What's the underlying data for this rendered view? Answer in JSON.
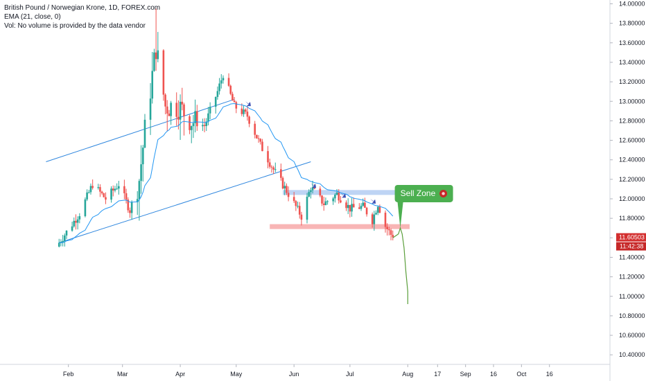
{
  "legend": {
    "title": "British Pound / Norwegian Krone, 1D, FOREX.com",
    "indicator": "EMA (21, close, 0)",
    "volume_note": "Vol: No volume is provided by the data vendor"
  },
  "colors": {
    "up": "#26a69a",
    "down": "#ef5350",
    "ema": "#2196f3",
    "channel": "#2e86de",
    "blue_zone": "#b3cdf2",
    "red_zone": "#f7a8a8",
    "projection": "#5a9e3a",
    "sell_zone_bg": "#4caf50",
    "last_price_bg": "#d32f2f"
  },
  "chart_data": {
    "type": "candlestick",
    "ylim": [
      10.25,
      14.0
    ],
    "y_ticks": [
      "14.00000",
      "13.80000",
      "13.60000",
      "13.40000",
      "13.20000",
      "13.00000",
      "12.80000",
      "12.60000",
      "12.40000",
      "12.20000",
      "12.00000",
      "11.80000",
      "11.60000",
      "11.40000",
      "11.20000",
      "11.00000",
      "10.80000",
      "10.60000",
      "10.40000"
    ],
    "x_ticks": [
      "Feb",
      "Mar",
      "Apr",
      "May",
      "Jun",
      "Jul",
      "Aug",
      "17",
      "Sep",
      "16",
      "Oct",
      "16"
    ],
    "last_price": "11.60503",
    "countdown": "11:42:38",
    "annotation": "Sell Zone",
    "annotation_icon": "target-emoji",
    "candles_summary": {
      "start_date": "2020-01-27",
      "end_date": "2020-07-24",
      "start_close": 11.55,
      "peak_high": 13.95,
      "peak_date": "2020-03-19",
      "end_close": 11.605
    },
    "ema_note": "EMA (21) of closes",
    "channel_lines": [
      {
        "from": {
          "date": "2020-01-20",
          "value": 12.38
        },
        "to": {
          "date": "2020-04-30",
          "value": 13.02
        }
      },
      {
        "from": {
          "date": "2020-01-27",
          "value": 11.55
        },
        "to": {
          "date": "2020-06-10",
          "value": 12.38
        }
      }
    ],
    "zones": [
      {
        "name": "resistance",
        "from_date": "2020-05-26",
        "to_date": "2020-07-30",
        "low": 12.04,
        "high": 12.09
      },
      {
        "name": "support",
        "from_date": "2020-05-19",
        "to_date": "2020-08-02",
        "low": 11.69,
        "high": 11.74
      }
    ],
    "projection_path": [
      {
        "date": "2020-07-24",
        "value": 11.6
      },
      {
        "date": "2020-07-27",
        "value": 11.64
      },
      {
        "date": "2020-07-28",
        "value": 11.7
      },
      {
        "date": "2020-07-29",
        "value": 11.64
      },
      {
        "date": "2020-07-30",
        "value": 11.5
      },
      {
        "date": "2020-07-31",
        "value": 11.25
      },
      {
        "date": "2020-08-01",
        "value": 11.05
      },
      {
        "date": "2020-08-01",
        "value": 10.92
      }
    ]
  }
}
